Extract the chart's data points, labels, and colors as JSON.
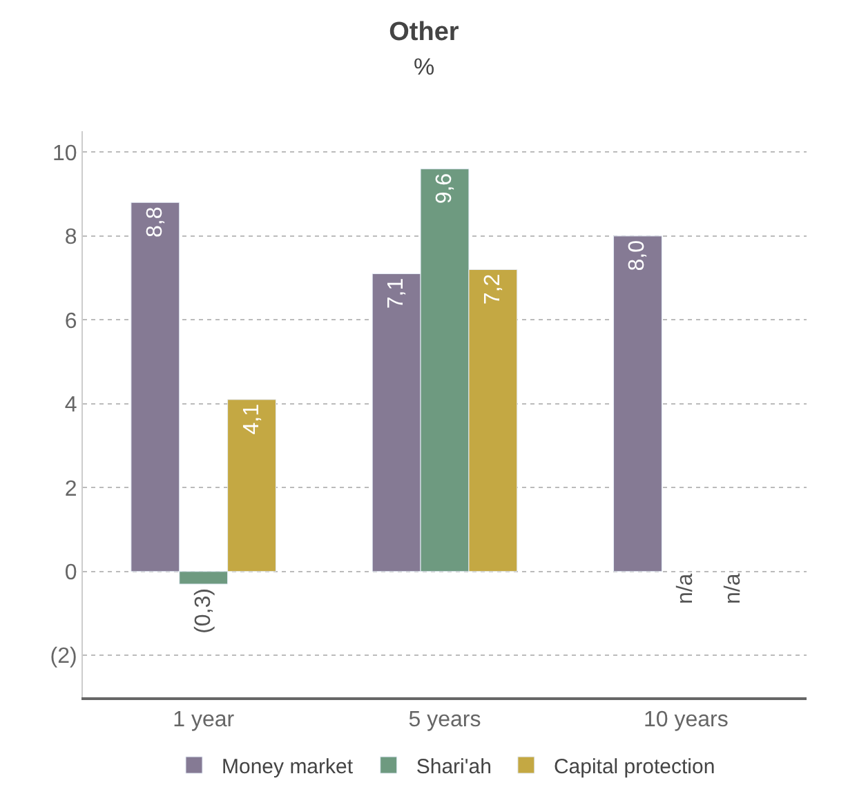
{
  "chart_data": {
    "type": "bar",
    "title": "Other",
    "subtitle": "%",
    "categories": [
      "1 year",
      "5 years",
      "10 years"
    ],
    "series": [
      {
        "name": "Money market",
        "color": "#857a94",
        "values": [
          8.8,
          7.1,
          8.0
        ],
        "value_labels": [
          "8,8",
          "7,1",
          "8,0"
        ]
      },
      {
        "name": "Shari'ah",
        "color": "#6e9a80",
        "values": [
          -0.3,
          9.6,
          null
        ],
        "value_labels": [
          "(0,3)",
          "9,6",
          "n/a"
        ]
      },
      {
        "name": "Capital protection",
        "color": "#c4a843",
        "values": [
          4.1,
          7.2,
          null
        ],
        "value_labels": [
          "4,1",
          "7,2",
          "n/a"
        ]
      }
    ],
    "ylim": [
      -3,
      10.5
    ],
    "yticks": [
      {
        "value": -2,
        "label": "(2)"
      },
      0,
      2,
      4,
      6,
      8,
      10
    ],
    "grid": "y",
    "legend": "bottom"
  }
}
